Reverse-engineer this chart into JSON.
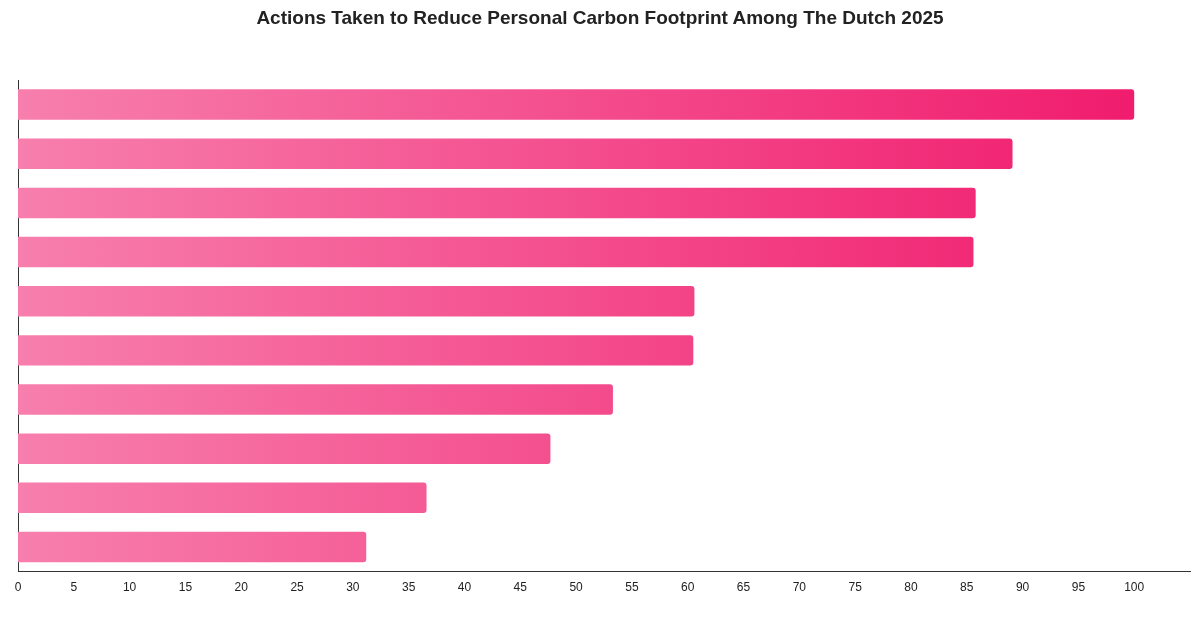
{
  "chart_data": {
    "type": "bar",
    "orientation": "horizontal",
    "title": "Actions Taken to Reduce Personal Carbon Footprint Among The Dutch 2025",
    "categories": [
      null,
      null,
      null,
      null,
      null,
      null,
      null,
      null,
      null,
      null
    ],
    "values": [
      100,
      89.1,
      85.8,
      85.6,
      60.6,
      60.5,
      53.3,
      47.7,
      36.6,
      31.2
    ],
    "color": "#f0176a",
    "xlim": [
      0,
      105
    ],
    "xticks": [
      0,
      5,
      10,
      15,
      20,
      25,
      30,
      35,
      40,
      45,
      50,
      55,
      60,
      65,
      70,
      75,
      80,
      85,
      90,
      95,
      100
    ],
    "grid": false,
    "tick_labels": "x"
  }
}
